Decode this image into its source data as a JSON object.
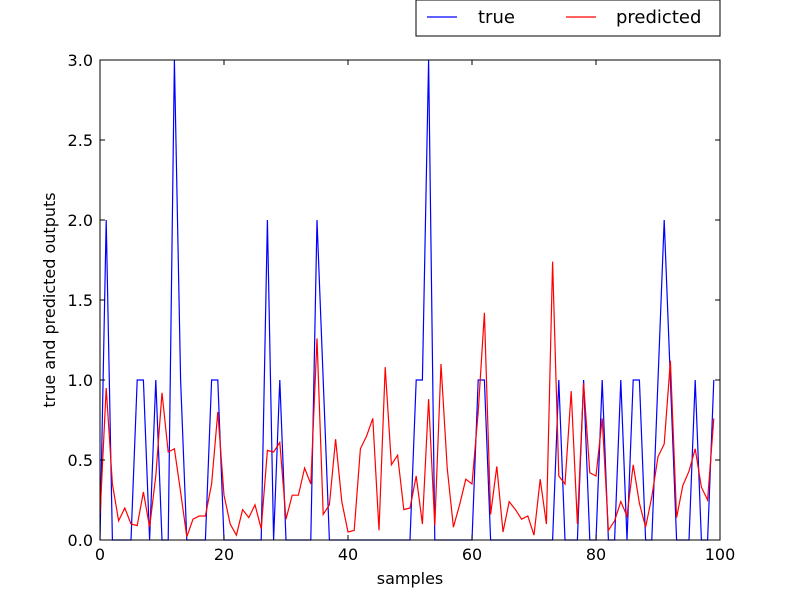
{
  "chart_data": {
    "type": "line",
    "title": "",
    "xlabel": "samples",
    "ylabel": "true and predicted outputs",
    "xlim": [
      0,
      100
    ],
    "ylim": [
      0.0,
      3.0
    ],
    "xticks": [
      "0",
      "20",
      "40",
      "60",
      "80",
      "100"
    ],
    "yticks": [
      "0.0",
      "0.5",
      "1.0",
      "1.5",
      "2.0",
      "2.5",
      "3.0"
    ],
    "grid": false,
    "legend": "top-right, above the plot area",
    "series": [
      {
        "name": "true",
        "color": "#0000ff",
        "x": [
          0,
          1,
          2,
          3,
          4,
          5,
          6,
          7,
          8,
          9,
          10,
          11,
          12,
          13,
          14,
          15,
          16,
          17,
          18,
          19,
          20,
          21,
          22,
          23,
          24,
          25,
          26,
          27,
          28,
          29,
          30,
          31,
          32,
          33,
          34,
          35,
          36,
          37,
          38,
          39,
          40,
          41,
          42,
          43,
          44,
          45,
          46,
          47,
          48,
          49,
          50,
          51,
          52,
          53,
          54,
          55,
          56,
          57,
          58,
          59,
          60,
          61,
          62,
          63,
          64,
          65,
          66,
          67,
          68,
          69,
          70,
          71,
          72,
          73,
          74,
          75,
          76,
          77,
          78,
          79,
          80,
          81,
          82,
          83,
          84,
          85,
          86,
          87,
          88,
          89,
          90,
          91,
          92,
          93,
          94,
          95,
          96,
          97,
          98,
          99
        ],
        "values": [
          0,
          2,
          0,
          0,
          0,
          0,
          1,
          1,
          0,
          1,
          0,
          0,
          3,
          1,
          0,
          0,
          0,
          0,
          1,
          1,
          0,
          0,
          0,
          0,
          0,
          0,
          0,
          2,
          0,
          1,
          0,
          0,
          0,
          0,
          0,
          2,
          1,
          0,
          0,
          0,
          0,
          0,
          0,
          0,
          0,
          0,
          0,
          0,
          0,
          0,
          0,
          1,
          1,
          3,
          0,
          0,
          0,
          0,
          0,
          0,
          0,
          1,
          1,
          0,
          0,
          0,
          0,
          0,
          0,
          0,
          0,
          0,
          0,
          0,
          1,
          0,
          0,
          0,
          1,
          0,
          0,
          1,
          0,
          0,
          1,
          0,
          1,
          1,
          0,
          0,
          1,
          2,
          1,
          0,
          0,
          0,
          1,
          0,
          0,
          1
        ]
      },
      {
        "name": "predicted",
        "color": "#ff0000",
        "x": [
          0,
          1,
          2,
          3,
          4,
          5,
          6,
          7,
          8,
          9,
          10,
          11,
          12,
          13,
          14,
          15,
          16,
          17,
          18,
          19,
          20,
          21,
          22,
          23,
          24,
          25,
          26,
          27,
          28,
          29,
          30,
          31,
          32,
          33,
          34,
          35,
          36,
          37,
          38,
          39,
          40,
          41,
          42,
          43,
          44,
          45,
          46,
          47,
          48,
          49,
          50,
          51,
          52,
          53,
          54,
          55,
          56,
          57,
          58,
          59,
          60,
          61,
          62,
          63,
          64,
          65,
          66,
          67,
          68,
          69,
          70,
          71,
          72,
          73,
          74,
          75,
          76,
          77,
          78,
          79,
          80,
          81,
          82,
          83,
          84,
          85,
          86,
          87,
          88,
          89,
          90,
          91,
          92,
          93,
          94,
          95,
          96,
          97,
          98,
          99
        ],
        "values": [
          0.15,
          0.95,
          0.35,
          0.12,
          0.2,
          0.1,
          0.09,
          0.3,
          0.08,
          0.4,
          0.92,
          0.55,
          0.57,
          0.3,
          0.02,
          0.13,
          0.15,
          0.15,
          0.35,
          0.8,
          0.28,
          0.1,
          0.03,
          0.19,
          0.14,
          0.22,
          0.07,
          0.56,
          0.55,
          0.61,
          0.13,
          0.28,
          0.28,
          0.45,
          0.35,
          1.26,
          0.16,
          0.22,
          0.63,
          0.24,
          0.05,
          0.06,
          0.57,
          0.65,
          0.76,
          0.06,
          1.08,
          0.47,
          0.53,
          0.19,
          0.2,
          0.4,
          0.1,
          0.88,
          0.09,
          1.1,
          0.45,
          0.08,
          0.22,
          0.38,
          0.35,
          0.8,
          1.42,
          0.16,
          0.46,
          0.05,
          0.24,
          0.19,
          0.13,
          0.15,
          0.03,
          0.38,
          0.1,
          1.74,
          0.4,
          0.35,
          0.93,
          0.1,
          0.98,
          0.42,
          0.4,
          0.76,
          0.06,
          0.12,
          0.24,
          0.15,
          0.47,
          0.23,
          0.08,
          0.27,
          0.52,
          0.6,
          1.12,
          0.14,
          0.34,
          0.43,
          0.57,
          0.33,
          0.25,
          0.76
        ]
      }
    ]
  }
}
